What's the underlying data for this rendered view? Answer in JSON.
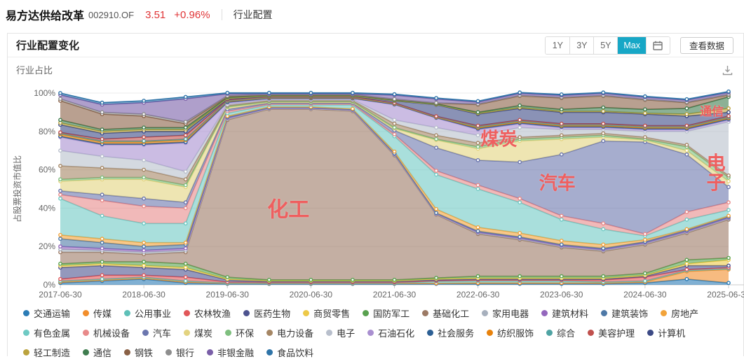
{
  "header": {
    "fund_name": "易方达供给改革",
    "fund_code": "002910.OF",
    "nav": "3.51",
    "change": "+0.96%",
    "breadcrumb": "行业配置"
  },
  "section": {
    "title": "行业配置变化",
    "range_buttons": [
      "1Y",
      "3Y",
      "5Y",
      "Max"
    ],
    "active_range": "Max",
    "view_data_label": "查看数据"
  },
  "chart": {
    "subtitle": "行业占比"
  },
  "colors": {
    "accent_active_button": "#17a7c6",
    "price_up_red": "#e03537",
    "annotation_red": "#ef5f5f"
  },
  "chart_data": {
    "type": "area",
    "stacked": true,
    "title": "行业占比",
    "ylabel": "占股票投资市值比",
    "ylim": [
      0,
      100
    ],
    "y_ticks": [
      "0%",
      "20%",
      "40%",
      "60%",
      "80%",
      "100%"
    ],
    "grid": true,
    "legend_position": "bottom",
    "x": [
      "2017-06-30",
      "2017-12-31",
      "2018-06-30",
      "2018-12-31",
      "2019-06-30",
      "2019-12-31",
      "2020-06-30",
      "2020-12-31",
      "2021-06-30",
      "2021-12-31",
      "2022-06-30",
      "2022-12-31",
      "2023-06-30",
      "2023-12-31",
      "2024-06-30",
      "2024-12-31",
      "2025-06-30"
    ],
    "x_axis_labels": [
      "2017-06-30",
      "2018-06-30",
      "2019-06-30",
      "2020-06-30",
      "2021-06-30",
      "2022-06-30",
      "2023-06-30",
      "2024-06-30",
      "2025-06-30"
    ],
    "series": [
      {
        "name": "交通运输",
        "color": "#2b7cb6",
        "values": [
          1,
          2,
          3,
          1,
          0.5,
          0.5,
          0.5,
          0.5,
          0.5,
          0.5,
          0.5,
          0.5,
          0.5,
          0.5,
          1,
          3,
          1
        ]
      },
      {
        "name": "传媒",
        "color": "#f28e2b",
        "values": [
          0.5,
          0.5,
          0.5,
          0.5,
          0.3,
          0.3,
          0.3,
          0.3,
          0.3,
          0.3,
          0.5,
          0.5,
          0.5,
          0.5,
          0.5,
          4,
          7
        ]
      },
      {
        "name": "公用事业",
        "color": "#5ec0b8",
        "values": [
          0.5,
          0.5,
          0.5,
          0.5,
          0.2,
          0.2,
          0.2,
          0.2,
          0.2,
          1,
          1,
          1,
          1,
          0.5,
          0.5,
          0.5,
          0.5
        ]
      },
      {
        "name": "农林牧渔",
        "color": "#e15759",
        "values": [
          1,
          2,
          1,
          2,
          0.5,
          0.3,
          0.3,
          0.3,
          0.3,
          0.3,
          0.5,
          0.5,
          0.5,
          1,
          2,
          0.5,
          0.5
        ]
      },
      {
        "name": "医药生物",
        "color": "#4d538f",
        "values": [
          6,
          5,
          4,
          4,
          1,
          0.5,
          0.5,
          0.5,
          0.5,
          0.5,
          0.5,
          0.5,
          0.5,
          0.5,
          0.5,
          2,
          1
        ]
      },
      {
        "name": "商贸零售",
        "color": "#edc948",
        "values": [
          1,
          1,
          1,
          1,
          0.5,
          0.3,
          0.3,
          0.3,
          0.3,
          0.5,
          0.5,
          0.5,
          0.5,
          0.5,
          0.5,
          1,
          3
        ]
      },
      {
        "name": "国防军工",
        "color": "#59a14f",
        "values": [
          1,
          1,
          2,
          2,
          1,
          0.5,
          0.5,
          0.5,
          0.5,
          0.5,
          1,
          1,
          1,
          1,
          1,
          2,
          1
        ]
      },
      {
        "name": "基础化工",
        "color": "#9c7a65",
        "values": [
          6,
          5,
          4,
          6,
          82,
          89,
          89,
          88,
          65,
          33,
          22,
          19,
          15,
          13,
          15,
          14,
          20
        ]
      },
      {
        "name": "家用电器",
        "color": "#a7b0bd",
        "values": [
          1.5,
          1,
          1,
          1,
          0.5,
          0.3,
          0.3,
          0.3,
          0.3,
          0.3,
          0.5,
          0.5,
          0.5,
          0.5,
          0.5,
          0.5,
          0.5
        ]
      },
      {
        "name": "建筑材料",
        "color": "#9467bd",
        "values": [
          1.5,
          1,
          1,
          1,
          0.5,
          0.3,
          0.3,
          0.3,
          0.3,
          0.3,
          0.5,
          0.5,
          0.5,
          0.5,
          0.5,
          0.5,
          0.5
        ]
      },
      {
        "name": "建筑装饰",
        "color": "#4e79a7",
        "values": [
          4,
          3,
          2,
          2,
          0.5,
          0.3,
          0.3,
          0.3,
          0.3,
          0.3,
          0.5,
          0.5,
          0.5,
          0.5,
          0.5,
          0.5,
          0.5
        ]
      },
      {
        "name": "房地产",
        "color": "#f2a33a",
        "values": [
          2,
          2,
          2,
          1,
          0.5,
          0.3,
          0.3,
          0.3,
          1,
          2,
          2,
          2,
          2,
          2,
          1,
          0.5,
          0.5
        ]
      },
      {
        "name": "有色金属",
        "color": "#6fcac4",
        "values": [
          19,
          12,
          10,
          10,
          1.5,
          1,
          1,
          2,
          8,
          18,
          20,
          16,
          11,
          8,
          2,
          5,
          3
        ]
      },
      {
        "name": "机械设备",
        "color": "#e88a8a",
        "values": [
          2,
          8,
          9,
          8,
          1,
          0.5,
          0.5,
          0.5,
          1,
          2,
          2,
          2,
          2,
          3,
          1,
          4,
          4
        ]
      },
      {
        "name": "汽车",
        "color": "#6b76ae",
        "values": [
          2,
          3,
          4,
          3,
          1,
          0.5,
          0.5,
          0.5,
          2,
          12,
          13,
          19,
          32,
          43,
          48,
          30,
          8
        ]
      },
      {
        "name": "煤炭",
        "color": "#e3d37f",
        "values": [
          5,
          8,
          10,
          8,
          1,
          0.5,
          0.5,
          0.5,
          1,
          4,
          6,
          11,
          8,
          2,
          1,
          2,
          3
        ]
      },
      {
        "name": "环保",
        "color": "#7fbf7f",
        "values": [
          1,
          1,
          1,
          1,
          0.5,
          0.3,
          0.3,
          0.3,
          0.5,
          0.5,
          1,
          1,
          1,
          1,
          0.5,
          2,
          2
        ]
      },
      {
        "name": "电力设备",
        "color": "#a58664",
        "values": [
          7,
          5,
          4,
          3,
          0.5,
          0.5,
          0.5,
          0.5,
          2,
          2,
          2,
          1,
          1,
          1,
          1,
          1,
          1
        ]
      },
      {
        "name": "电子",
        "color": "#b8bfcc",
        "values": [
          8,
          6,
          5,
          4,
          0.5,
          0.5,
          0.5,
          0.5,
          2,
          4,
          4,
          5,
          3,
          2,
          3,
          7,
          28
        ]
      },
      {
        "name": "石油石化",
        "color": "#a98fd0",
        "values": [
          7,
          6,
          8,
          15,
          1,
          0.5,
          0.5,
          0.5,
          8,
          5,
          3,
          2,
          1,
          1,
          1,
          1,
          1
        ]
      },
      {
        "name": "社会服务",
        "color": "#2c5f94",
        "values": [
          0.5,
          0.5,
          0.5,
          0.5,
          0.3,
          0.2,
          0.2,
          0.2,
          0.2,
          0.2,
          0.5,
          0.5,
          0.5,
          0.5,
          0.5,
          0.5,
          0.5
        ]
      },
      {
        "name": "纺织服饰",
        "color": "#e8820c",
        "values": [
          1,
          1,
          1,
          1,
          0.5,
          0.3,
          0.3,
          0.3,
          0.3,
          0.3,
          0.5,
          0.5,
          0.5,
          0.5,
          0.5,
          0.5,
          0.5
        ]
      },
      {
        "name": "综合",
        "color": "#4fa3a3",
        "values": [
          0.5,
          0.5,
          0.5,
          0.5,
          0.2,
          0.2,
          0.2,
          0.2,
          0.2,
          0.2,
          0.5,
          0.5,
          0.5,
          0.5,
          0.5,
          0.5,
          0.5
        ]
      },
      {
        "name": "美容护理",
        "color": "#c0504d",
        "values": [
          0.5,
          1,
          2,
          2,
          0.5,
          0.2,
          0.2,
          0.2,
          0.2,
          0.2,
          0.5,
          0.5,
          0.5,
          0.5,
          0.5,
          0.5,
          0.5
        ]
      },
      {
        "name": "计算机",
        "color": "#3c4a85",
        "values": [
          4,
          3,
          3,
          2,
          0.5,
          0.3,
          0.3,
          0.3,
          1,
          6,
          6,
          6,
          6,
          6,
          6,
          5,
          2
        ]
      },
      {
        "name": "轻工制造",
        "color": "#bba33e",
        "values": [
          1,
          1,
          1,
          1,
          0.3,
          0.2,
          0.2,
          0.2,
          0.2,
          0.2,
          0.5,
          0.5,
          0.5,
          0.5,
          0.5,
          1,
          2
        ]
      },
      {
        "name": "通信",
        "color": "#3f7d4f",
        "values": [
          1.5,
          1,
          1,
          1,
          0.5,
          0.3,
          0.3,
          0.3,
          0.3,
          0.3,
          0.5,
          1,
          1,
          2,
          2,
          3,
          6
        ]
      },
      {
        "name": "钢铁",
        "color": "#8a6146",
        "values": [
          10,
          8,
          6,
          2,
          0.5,
          0.3,
          0.3,
          0.3,
          0.3,
          0.3,
          4,
          5,
          6,
          6,
          5,
          3,
          1
        ]
      },
      {
        "name": "银行",
        "color": "#8e8e8e",
        "values": [
          1,
          1,
          1,
          1,
          0.3,
          0.2,
          0.2,
          0.2,
          0.2,
          0.2,
          0.3,
          0.3,
          0.3,
          0.3,
          0.3,
          0.3,
          0.3
        ]
      },
      {
        "name": "非银金融",
        "color": "#7a5fa8",
        "values": [
          2,
          4,
          6,
          12,
          1,
          0.3,
          0.3,
          0.3,
          2,
          2,
          1,
          1,
          1,
          1,
          1,
          1,
          1
        ]
      },
      {
        "name": "食品饮料",
        "color": "#2f74a8",
        "values": [
          1,
          1,
          1,
          1,
          0.5,
          0.5,
          0.5,
          0.5,
          0.5,
          0.5,
          0.5,
          0.5,
          0.5,
          0.5,
          0.5,
          0.5,
          0.5
        ]
      }
    ],
    "annotations": [
      {
        "text": "化工",
        "x_index": 5.46,
        "y_pct": 39,
        "size": 30,
        "vertical": false
      },
      {
        "text": "煤炭",
        "x_index": 10.5,
        "y_pct": 76,
        "size": 26,
        "vertical": false
      },
      {
        "text": "汽车",
        "x_index": 11.9,
        "y_pct": 53,
        "size": 26,
        "vertical": false
      },
      {
        "text": "电子",
        "x_index": 15.7,
        "y_pct": 58,
        "size": 27,
        "vertical": true
      },
      {
        "text": "通信",
        "x_index": 15.6,
        "y_pct": 90,
        "size": 17,
        "vertical": false
      }
    ]
  }
}
